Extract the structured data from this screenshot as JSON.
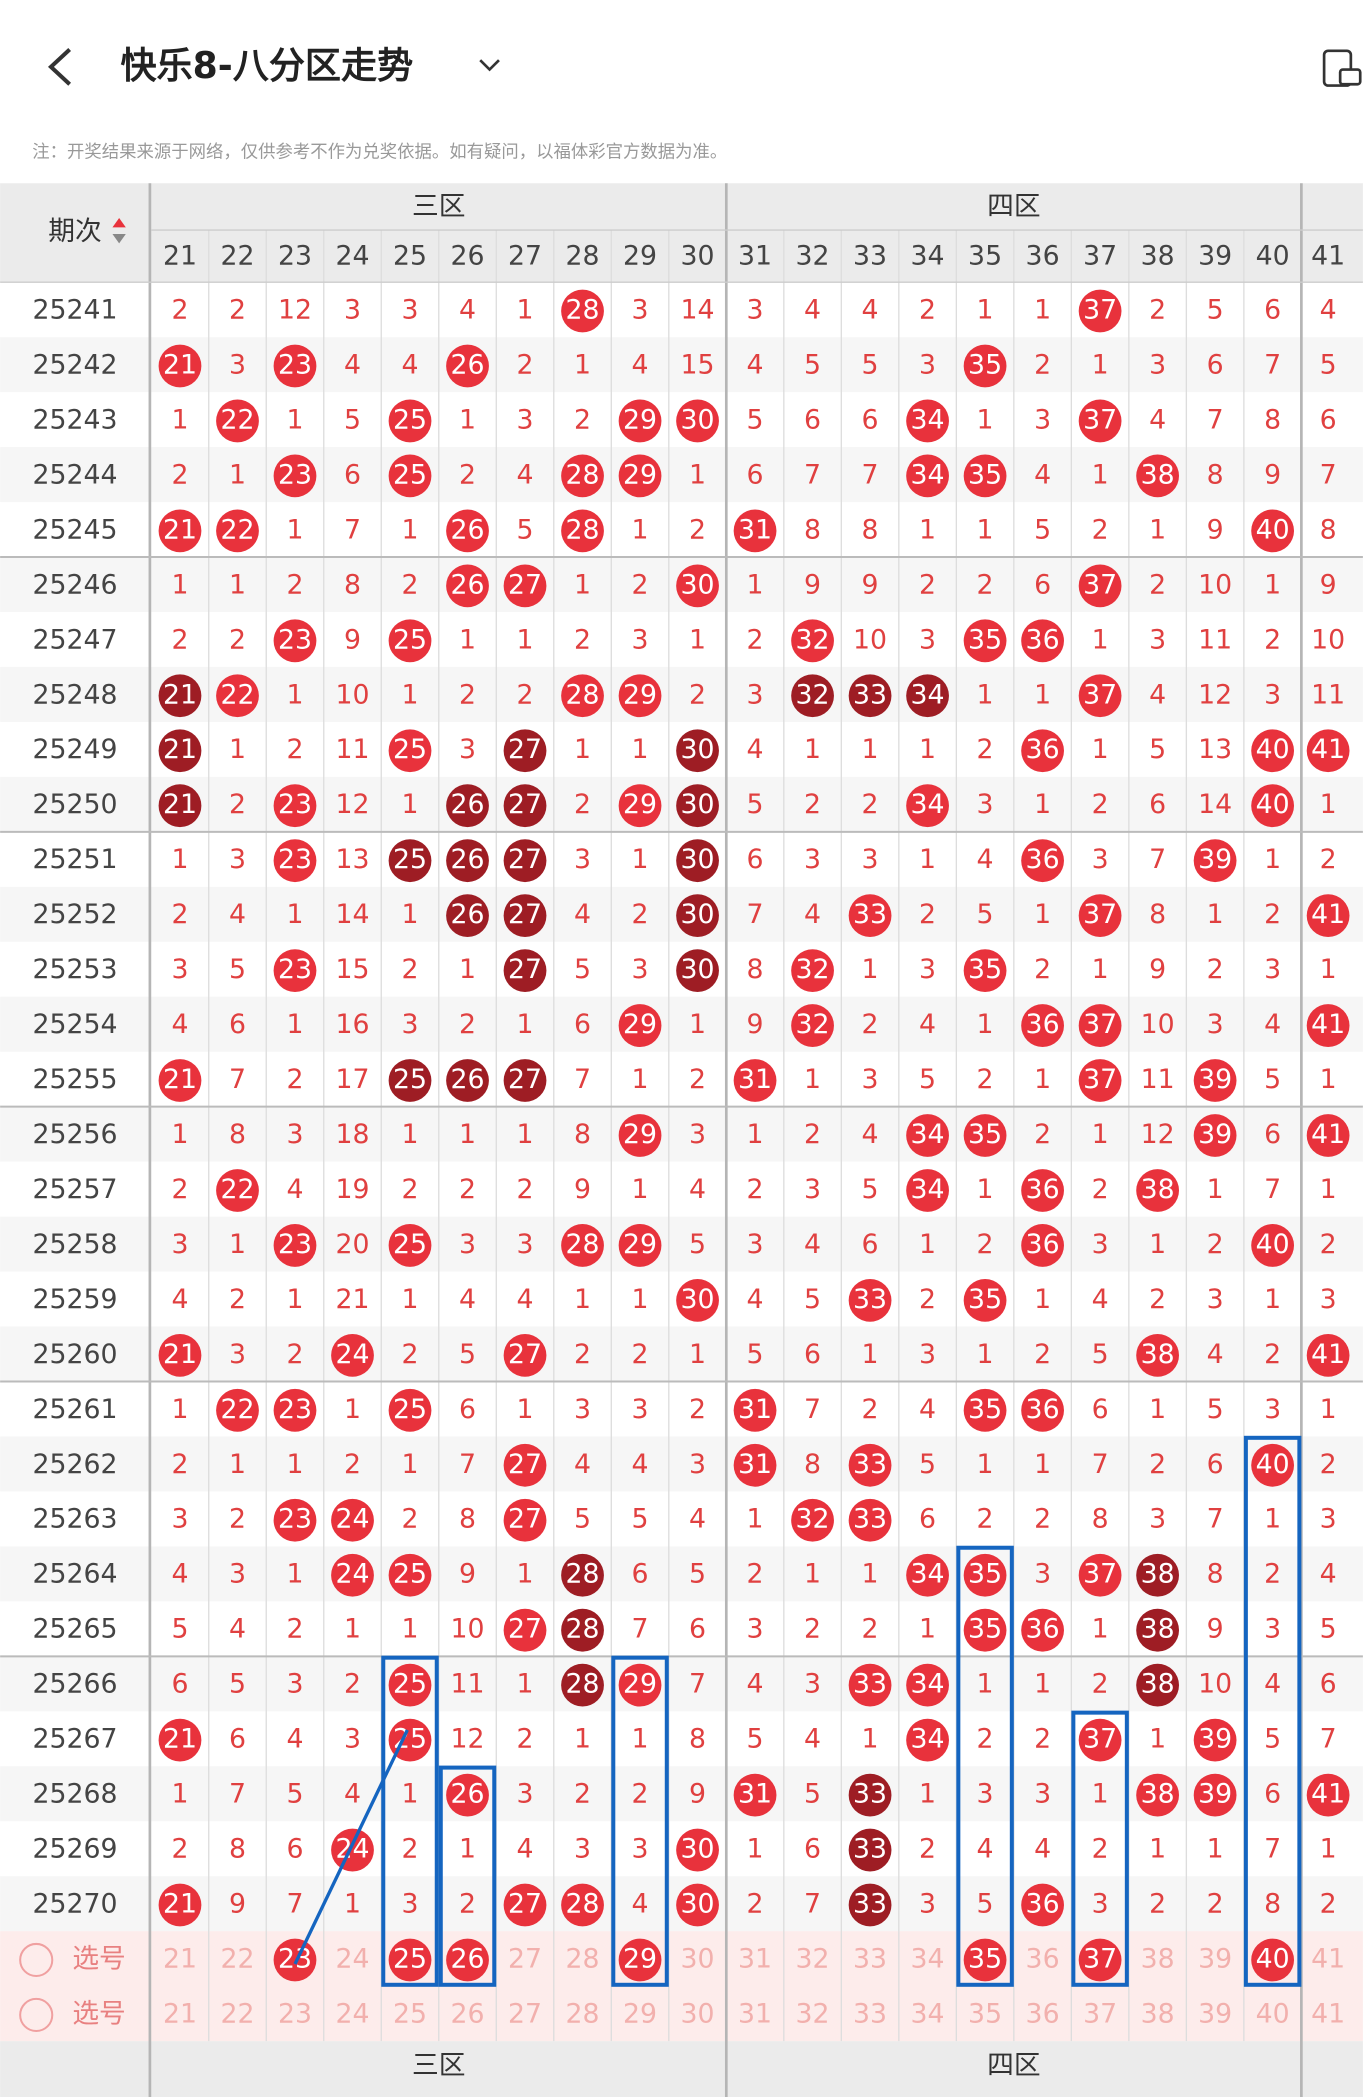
{
  "header": {
    "title": "快乐8-八分区走势",
    "note": "注：开奖结果来源于网络，仅供参考不作为兑奖依据。如有疑问，以福体彩官方数据为准。"
  },
  "table": {
    "issue_label": "期次",
    "zones": [
      "三区",
      "四区"
    ],
    "select_label": "选号",
    "columns": [
      21,
      22,
      23,
      24,
      25,
      26,
      27,
      28,
      29,
      30,
      31,
      32,
      33,
      34,
      35,
      36,
      37,
      38,
      39,
      40,
      41
    ],
    "hit_color": "#e8323c",
    "dark_color": "#9e1d24",
    "rows": [
      {
        "issue": "25241",
        "values": [
          2,
          2,
          12,
          3,
          3,
          4,
          1,
          28,
          3,
          14,
          3,
          4,
          4,
          2,
          1,
          1,
          37,
          2,
          5,
          6,
          4
        ],
        "red": [
          28,
          37
        ],
        "dark": []
      },
      {
        "issue": "25242",
        "values": [
          21,
          3,
          23,
          4,
          4,
          26,
          2,
          1,
          4,
          15,
          4,
          5,
          5,
          3,
          35,
          2,
          1,
          3,
          6,
          7,
          5
        ],
        "red": [
          21,
          23,
          26,
          35
        ],
        "dark": []
      },
      {
        "issue": "25243",
        "values": [
          1,
          22,
          1,
          5,
          25,
          1,
          3,
          2,
          29,
          30,
          5,
          6,
          6,
          34,
          1,
          3,
          37,
          4,
          7,
          8,
          6
        ],
        "red": [
          22,
          25,
          29,
          30,
          34,
          37
        ],
        "dark": []
      },
      {
        "issue": "25244",
        "values": [
          2,
          1,
          23,
          6,
          25,
          2,
          4,
          28,
          29,
          1,
          6,
          7,
          7,
          34,
          35,
          4,
          1,
          38,
          8,
          9,
          7
        ],
        "red": [
          23,
          25,
          28,
          29,
          34,
          35,
          38
        ],
        "dark": []
      },
      {
        "issue": "25245",
        "values": [
          21,
          22,
          1,
          7,
          1,
          26,
          5,
          28,
          1,
          2,
          31,
          8,
          8,
          1,
          1,
          5,
          2,
          1,
          9,
          40,
          8
        ],
        "red": [
          21,
          22,
          26,
          28,
          31,
          40
        ],
        "dark": []
      },
      {
        "issue": "25246",
        "values": [
          1,
          1,
          2,
          8,
          2,
          26,
          27,
          1,
          2,
          30,
          1,
          9,
          9,
          2,
          2,
          6,
          37,
          2,
          10,
          1,
          9
        ],
        "red": [
          26,
          27,
          30,
          37
        ],
        "dark": []
      },
      {
        "issue": "25247",
        "values": [
          2,
          2,
          23,
          9,
          25,
          1,
          1,
          2,
          3,
          1,
          2,
          32,
          10,
          3,
          35,
          36,
          1,
          3,
          11,
          2,
          10
        ],
        "red": [
          23,
          25,
          32,
          35,
          36
        ],
        "dark": []
      },
      {
        "issue": "25248",
        "values": [
          21,
          22,
          1,
          10,
          1,
          2,
          2,
          28,
          29,
          2,
          3,
          32,
          33,
          34,
          1,
          1,
          37,
          4,
          12,
          3,
          11
        ],
        "red": [
          22,
          28,
          29,
          37
        ],
        "dark": [
          21,
          32,
          33,
          34
        ]
      },
      {
        "issue": "25249",
        "values": [
          21,
          1,
          2,
          11,
          25,
          3,
          27,
          1,
          1,
          30,
          4,
          1,
          1,
          1,
          2,
          36,
          1,
          5,
          13,
          40,
          41
        ],
        "red": [
          25,
          36,
          40,
          41
        ],
        "dark": [
          21,
          27,
          30
        ]
      },
      {
        "issue": "25250",
        "values": [
          21,
          2,
          23,
          12,
          1,
          26,
          27,
          2,
          29,
          30,
          5,
          2,
          2,
          34,
          3,
          1,
          2,
          6,
          14,
          40,
          1
        ],
        "red": [
          23,
          29,
          34,
          40
        ],
        "dark": [
          21,
          26,
          27,
          30
        ]
      },
      {
        "issue": "25251",
        "values": [
          1,
          3,
          23,
          13,
          25,
          26,
          27,
          3,
          1,
          30,
          6,
          3,
          3,
          1,
          4,
          36,
          3,
          7,
          39,
          1,
          2
        ],
        "red": [
          23,
          36,
          39
        ],
        "dark": [
          25,
          26,
          27,
          30
        ]
      },
      {
        "issue": "25252",
        "values": [
          2,
          4,
          1,
          14,
          1,
          26,
          27,
          4,
          2,
          30,
          7,
          4,
          33,
          2,
          5,
          1,
          37,
          8,
          1,
          2,
          41
        ],
        "red": [
          33,
          37,
          41
        ],
        "dark": [
          26,
          27,
          30
        ]
      },
      {
        "issue": "25253",
        "values": [
          3,
          5,
          23,
          15,
          2,
          1,
          27,
          5,
          3,
          30,
          8,
          32,
          1,
          3,
          35,
          2,
          1,
          9,
          2,
          3,
          1
        ],
        "red": [
          23,
          32,
          35
        ],
        "dark": [
          27,
          30
        ]
      },
      {
        "issue": "25254",
        "values": [
          4,
          6,
          1,
          16,
          3,
          2,
          1,
          6,
          29,
          1,
          9,
          32,
          2,
          4,
          1,
          36,
          37,
          10,
          3,
          4,
          41
        ],
        "red": [
          29,
          32,
          36,
          37,
          41
        ],
        "dark": []
      },
      {
        "issue": "25255",
        "values": [
          21,
          7,
          2,
          17,
          25,
          26,
          27,
          7,
          1,
          2,
          31,
          1,
          3,
          5,
          2,
          1,
          37,
          11,
          39,
          5,
          1
        ],
        "red": [
          21,
          31,
          37,
          39
        ],
        "dark": [
          25,
          26,
          27
        ]
      },
      {
        "issue": "25256",
        "values": [
          1,
          8,
          3,
          18,
          1,
          1,
          1,
          8,
          29,
          3,
          1,
          2,
          4,
          34,
          35,
          2,
          1,
          12,
          39,
          6,
          41
        ],
        "red": [
          29,
          34,
          35,
          39,
          41
        ],
        "dark": []
      },
      {
        "issue": "25257",
        "values": [
          2,
          22,
          4,
          19,
          2,
          2,
          2,
          9,
          1,
          4,
          2,
          3,
          5,
          34,
          1,
          36,
          2,
          38,
          1,
          7,
          1
        ],
        "red": [
          22,
          34,
          36,
          38
        ],
        "dark": []
      },
      {
        "issue": "25258",
        "values": [
          3,
          1,
          23,
          20,
          25,
          3,
          3,
          28,
          29,
          5,
          3,
          4,
          6,
          1,
          2,
          36,
          3,
          1,
          2,
          40,
          2
        ],
        "red": [
          23,
          25,
          28,
          29,
          36,
          40
        ],
        "dark": []
      },
      {
        "issue": "25259",
        "values": [
          4,
          2,
          1,
          21,
          1,
          4,
          4,
          1,
          1,
          30,
          4,
          5,
          33,
          2,
          35,
          1,
          4,
          2,
          3,
          1,
          3
        ],
        "red": [
          30,
          33,
          35
        ],
        "dark": []
      },
      {
        "issue": "25260",
        "values": [
          21,
          3,
          2,
          24,
          2,
          5,
          27,
          2,
          2,
          1,
          5,
          6,
          1,
          3,
          1,
          2,
          5,
          38,
          4,
          2,
          41
        ],
        "red": [
          21,
          24,
          27,
          38,
          41
        ],
        "dark": []
      },
      {
        "issue": "25261",
        "values": [
          1,
          22,
          23,
          1,
          25,
          6,
          1,
          3,
          3,
          2,
          31,
          7,
          2,
          4,
          35,
          36,
          6,
          1,
          5,
          3,
          1
        ],
        "red": [
          22,
          23,
          25,
          31,
          35,
          36
        ],
        "dark": []
      },
      {
        "issue": "25262",
        "values": [
          2,
          1,
          1,
          2,
          1,
          7,
          27,
          4,
          4,
          3,
          31,
          8,
          33,
          5,
          1,
          1,
          7,
          2,
          6,
          40,
          2
        ],
        "red": [
          27,
          31,
          33,
          40
        ],
        "dark": []
      },
      {
        "issue": "25263",
        "values": [
          3,
          2,
          23,
          24,
          2,
          8,
          27,
          5,
          5,
          4,
          1,
          32,
          33,
          6,
          2,
          2,
          8,
          3,
          7,
          1,
          3
        ],
        "red": [
          23,
          24,
          27,
          32,
          33
        ],
        "dark": []
      },
      {
        "issue": "25264",
        "values": [
          4,
          3,
          1,
          24,
          25,
          9,
          1,
          28,
          6,
          5,
          2,
          1,
          1,
          34,
          35,
          3,
          37,
          38,
          8,
          2,
          4
        ],
        "red": [
          24,
          25,
          34,
          35,
          37
        ],
        "dark": [
          28,
          38
        ]
      },
      {
        "issue": "25265",
        "values": [
          5,
          4,
          2,
          1,
          1,
          10,
          27,
          28,
          7,
          6,
          3,
          2,
          2,
          1,
          35,
          36,
          1,
          38,
          9,
          3,
          5
        ],
        "red": [
          27,
          35,
          36
        ],
        "dark": [
          28,
          38
        ]
      },
      {
        "issue": "25266",
        "values": [
          6,
          5,
          3,
          2,
          25,
          11,
          1,
          28,
          29,
          7,
          4,
          3,
          33,
          34,
          1,
          1,
          2,
          38,
          10,
          4,
          6
        ],
        "red": [
          25,
          29,
          33,
          34
        ],
        "dark": [
          28,
          38
        ]
      },
      {
        "issue": "25267",
        "values": [
          21,
          6,
          4,
          3,
          25,
          12,
          2,
          1,
          1,
          8,
          5,
          4,
          1,
          34,
          2,
          2,
          37,
          1,
          39,
          5,
          7
        ],
        "red": [
          21,
          25,
          34,
          37,
          39
        ],
        "dark": []
      },
      {
        "issue": "25268",
        "values": [
          1,
          7,
          5,
          4,
          1,
          26,
          3,
          2,
          2,
          9,
          31,
          5,
          33,
          1,
          3,
          3,
          1,
          38,
          39,
          6,
          41
        ],
        "red": [
          26,
          31,
          38,
          39,
          41
        ],
        "dark": [
          33
        ]
      },
      {
        "issue": "25269",
        "values": [
          2,
          8,
          6,
          24,
          2,
          1,
          4,
          3,
          3,
          30,
          1,
          6,
          33,
          2,
          4,
          4,
          2,
          1,
          1,
          7,
          1
        ],
        "red": [
          24,
          30
        ],
        "dark": [
          33
        ]
      },
      {
        "issue": "25270",
        "values": [
          21,
          9,
          7,
          1,
          3,
          2,
          27,
          28,
          4,
          30,
          2,
          7,
          33,
          3,
          5,
          36,
          3,
          2,
          2,
          8,
          2
        ],
        "red": [
          21,
          27,
          28,
          30,
          36
        ],
        "dark": [
          33
        ]
      }
    ],
    "selected": [
      23,
      25,
      26,
      29,
      35,
      37,
      40
    ]
  }
}
